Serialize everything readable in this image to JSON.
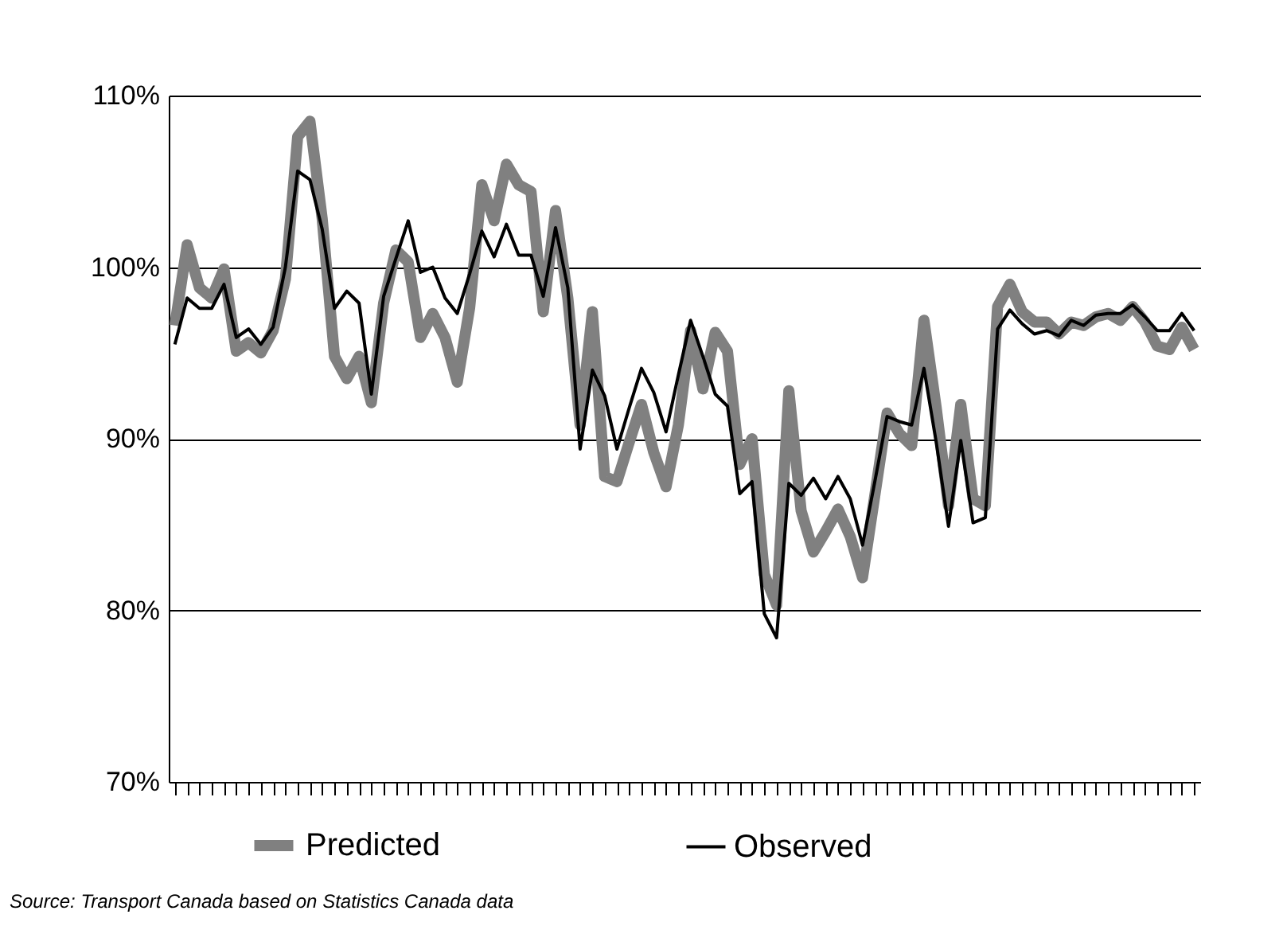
{
  "chart_data": {
    "type": "line",
    "categories": [
      null,
      null,
      null,
      null,
      null,
      null,
      null,
      null,
      null,
      null,
      null,
      null,
      null,
      null,
      null,
      null,
      null,
      null,
      null,
      null,
      null,
      null,
      null,
      null,
      null,
      null,
      null,
      null,
      null,
      null,
      null,
      null,
      null,
      null,
      null,
      null,
      null,
      null,
      null,
      null,
      null,
      null,
      null,
      null,
      null,
      null,
      null,
      null,
      null,
      null,
      null,
      null,
      null,
      null,
      null,
      null,
      null,
      null,
      null,
      null,
      null,
      null,
      null,
      null,
      null,
      null,
      null,
      null,
      null,
      null,
      null,
      null,
      null,
      null,
      null,
      null,
      null,
      null,
      null,
      null,
      null,
      null,
      null,
      null
    ],
    "series": [
      {
        "name": "Predicted",
        "color": "#808080",
        "values": [
          96.6,
          101.3,
          98.8,
          98.2,
          99.9,
          95.1,
          95.6,
          95.0,
          96.3,
          99.3,
          107.6,
          108.5,
          102.8,
          94.8,
          93.5,
          94.8,
          92.1,
          97.9,
          101.0,
          100.3,
          95.9,
          97.3,
          95.9,
          93.3,
          97.6,
          104.8,
          102.7,
          106.0,
          104.8,
          104.4,
          97.4,
          103.3,
          98.2,
          90.8,
          97.4,
          87.8,
          87.5,
          89.8,
          92.0,
          89.2,
          87.2,
          90.8,
          96.3,
          92.9,
          96.2,
          95.1,
          88.5,
          90.0,
          82.1,
          80.3,
          92.8,
          85.8,
          83.4,
          84.6,
          85.9,
          84.3,
          81.9,
          86.7,
          91.5,
          90.3,
          89.6,
          96.9,
          91.8,
          86.1,
          92.0,
          86.5,
          86.1,
          97.7,
          99.0,
          97.4,
          96.8,
          96.8,
          96.1,
          96.8,
          96.6,
          97.1,
          97.3,
          96.9,
          97.7,
          96.8,
          95.4,
          95.2,
          96.5,
          95.2
        ]
      },
      {
        "name": "Observed",
        "color": "#000000",
        "values": [
          95.5,
          98.2,
          97.6,
          97.6,
          99.0,
          95.9,
          96.4,
          95.5,
          96.5,
          100.0,
          105.6,
          105.1,
          102.2,
          97.6,
          98.6,
          97.9,
          92.6,
          98.3,
          100.5,
          102.7,
          99.7,
          100.0,
          98.2,
          97.3,
          99.6,
          102.1,
          100.6,
          102.5,
          100.7,
          100.7,
          98.3,
          102.3,
          98.8,
          89.4,
          94.0,
          92.5,
          89.4,
          91.8,
          94.1,
          92.7,
          90.4,
          93.7,
          96.9,
          94.8,
          92.6,
          91.9,
          86.8,
          87.5,
          79.8,
          78.4,
          87.4,
          86.7,
          87.7,
          86.5,
          87.8,
          86.5,
          83.8,
          87.5,
          91.3,
          91.0,
          90.8,
          94.1,
          89.8,
          84.9,
          89.9,
          85.1,
          85.4,
          96.4,
          97.5,
          96.7,
          96.1,
          96.3,
          96.0,
          96.9,
          96.6,
          97.2,
          97.3,
          97.3,
          97.8,
          97.1,
          96.3,
          96.3,
          97.3,
          96.3
        ]
      }
    ],
    "ylim": [
      70,
      110
    ],
    "yticks": [
      {
        "value": 70,
        "label": "70%"
      },
      {
        "value": 80,
        "label": "80%"
      },
      {
        "value": 90,
        "label": "90%"
      },
      {
        "value": 100,
        "label": "100%"
      },
      {
        "value": 110,
        "label": "110%"
      }
    ],
    "grid": "y",
    "legend": "bottom",
    "tick_labels": "y",
    "marker": "none",
    "line_style": "solid",
    "annotations": [
      "Source:   Transport Canada based on Statistics Canada data"
    ]
  }
}
